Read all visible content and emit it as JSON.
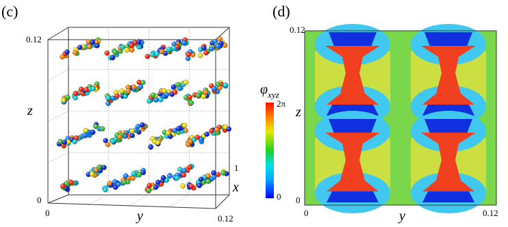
{
  "panel_c": {
    "label": "(c)",
    "z_axis": {
      "title": "z",
      "max": "0.12",
      "min": "0"
    },
    "y_axis": {
      "title": "y",
      "min": "0",
      "max": "0.12"
    },
    "x_axis": {
      "title": "x",
      "max": "1"
    }
  },
  "colorbar": {
    "title": "φ",
    "subscript": "xyz",
    "max": "2π",
    "min": "0"
  },
  "panel_d": {
    "label": "(d)",
    "z_axis": {
      "title": "z",
      "max": "0.12",
      "min": "0"
    },
    "y_axis": {
      "title": "y",
      "min": "0",
      "max": "0.12"
    }
  }
}
